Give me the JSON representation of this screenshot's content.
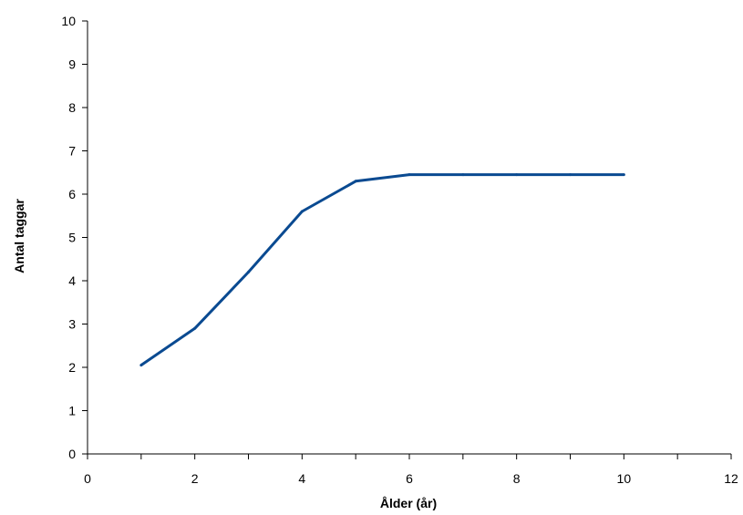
{
  "chart_data": {
    "type": "line",
    "title": "",
    "xlabel": "Ålder (år)",
    "ylabel": "Antal taggar",
    "xlim": [
      0,
      12
    ],
    "ylim": [
      0,
      10
    ],
    "x_ticks": [
      0,
      2,
      4,
      6,
      8,
      10,
      12
    ],
    "x_minor_ticks": [
      1,
      3,
      5,
      7,
      9,
      11
    ],
    "y_ticks": [
      0,
      1,
      2,
      3,
      4,
      5,
      6,
      7,
      8,
      9,
      10
    ],
    "grid": false,
    "legend": "none",
    "series": [
      {
        "color": "#0a4a91",
        "x": [
          1,
          2,
          3,
          4,
          5,
          6,
          7,
          8,
          9,
          10
        ],
        "y": [
          2.05,
          2.9,
          4.2,
          5.6,
          6.3,
          6.45,
          6.45,
          6.45,
          6.45,
          6.45
        ]
      }
    ]
  }
}
